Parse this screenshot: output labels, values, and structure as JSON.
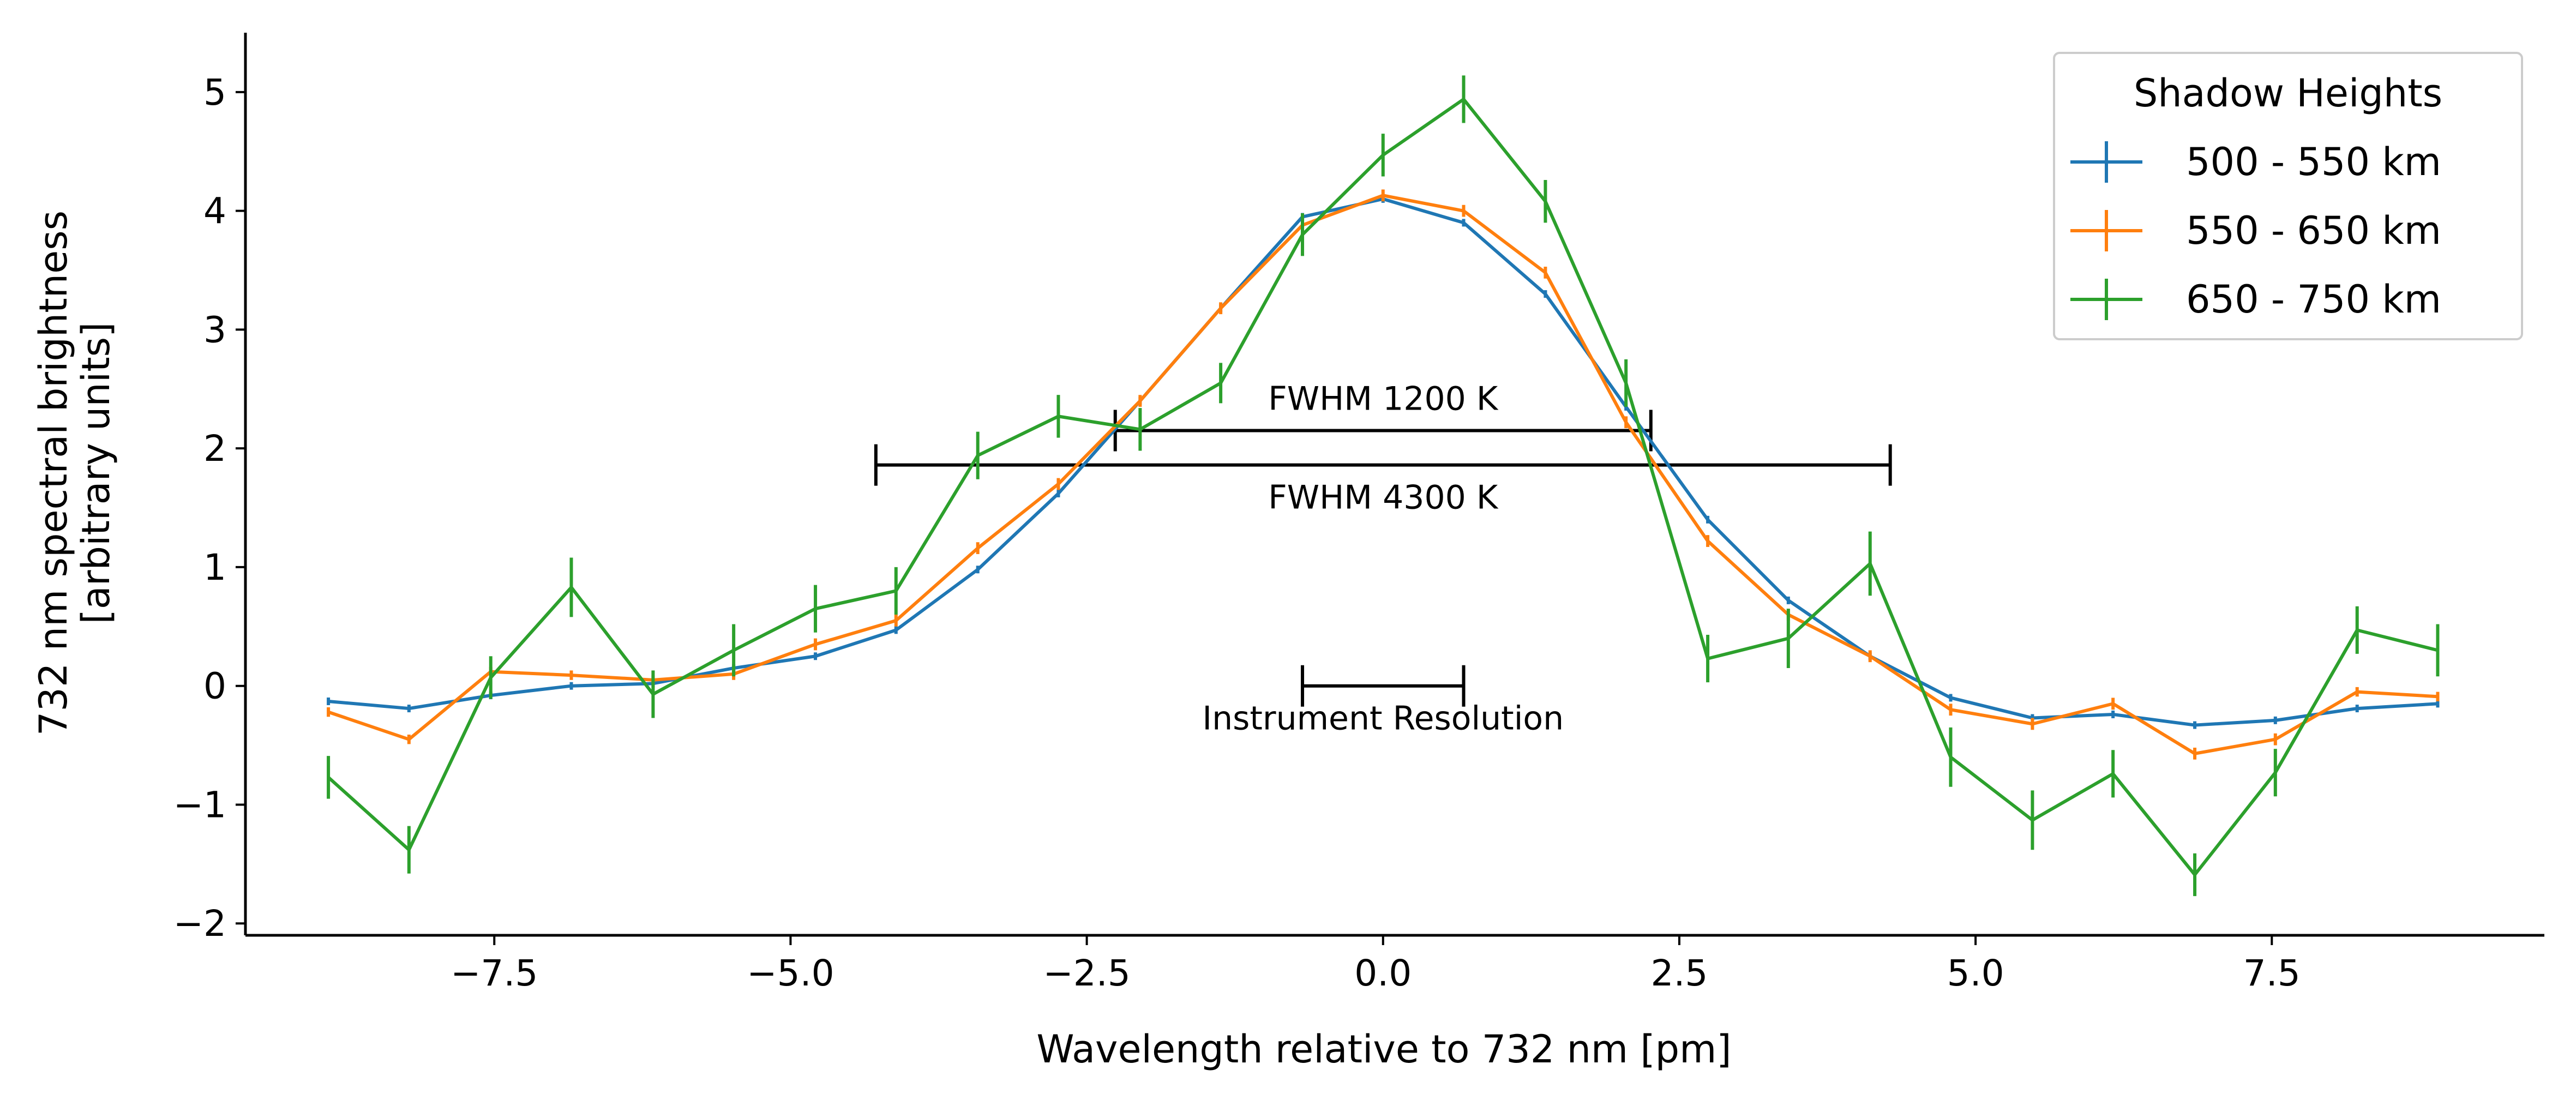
{
  "chart_data": {
    "type": "line",
    "title": "",
    "xlabel": "Wavelength relative to 732 nm [pm]",
    "ylabel": [
      "732 nm spectral brightness",
      "[arbitrary units]"
    ],
    "xlim": [
      -9.6,
      9.8
    ],
    "ylim": [
      -2.1,
      5.5
    ],
    "xticks": [
      -7.5,
      -5.0,
      -2.5,
      0.0,
      2.5,
      5.0,
      7.5
    ],
    "xtick_labels": [
      "−7.5",
      "−5.0",
      "−2.5",
      "0.0",
      "2.5",
      "5.0",
      "7.5"
    ],
    "yticks": [
      -2,
      -1,
      0,
      1,
      2,
      3,
      4,
      5
    ],
    "ytick_labels": [
      "−2",
      "−1",
      "0",
      "1",
      "2",
      "3",
      "4",
      "5"
    ],
    "grid": false,
    "x": [
      -8.9,
      -8.22,
      -7.53,
      -6.85,
      -6.16,
      -5.48,
      -4.79,
      -4.11,
      -3.42,
      -2.74,
      -2.05,
      -1.37,
      -0.68,
      0.0,
      0.68,
      1.37,
      2.05,
      2.74,
      3.42,
      4.11,
      4.79,
      5.48,
      6.16,
      6.85,
      7.53,
      8.22,
      8.9
    ],
    "series": [
      {
        "name": "500 - 550 km",
        "color": "#1f77b4",
        "values": [
          -0.13,
          -0.19,
          -0.08,
          0.0,
          0.02,
          0.15,
          0.25,
          0.47,
          0.98,
          1.62,
          2.4,
          3.18,
          3.95,
          4.1,
          3.9,
          3.3,
          2.35,
          1.4,
          0.72,
          0.25,
          -0.1,
          -0.27,
          -0.24,
          -0.33,
          -0.29,
          -0.19,
          -0.15
        ],
        "errors": [
          0.02,
          0.02,
          0.02,
          0.02,
          0.02,
          0.02,
          0.02,
          0.03,
          0.03,
          0.03,
          0.03,
          0.03,
          0.03,
          0.03,
          0.03,
          0.03,
          0.03,
          0.03,
          0.03,
          0.02,
          0.02,
          0.02,
          0.02,
          0.02,
          0.02,
          0.02,
          0.02
        ]
      },
      {
        "name": "550 - 650 km",
        "color": "#ff7f0e",
        "values": [
          -0.22,
          -0.45,
          0.12,
          0.09,
          0.05,
          0.1,
          0.35,
          0.55,
          1.16,
          1.7,
          2.4,
          3.18,
          3.88,
          4.13,
          4.0,
          3.48,
          2.22,
          1.22,
          0.6,
          0.25,
          -0.2,
          -0.32,
          -0.15,
          -0.57,
          -0.45,
          -0.05,
          -0.09
        ],
        "errors": [
          0.04,
          0.04,
          0.04,
          0.04,
          0.04,
          0.05,
          0.05,
          0.05,
          0.05,
          0.05,
          0.05,
          0.05,
          0.05,
          0.05,
          0.05,
          0.05,
          0.05,
          0.05,
          0.05,
          0.05,
          0.05,
          0.05,
          0.05,
          0.05,
          0.05,
          0.04,
          0.04
        ]
      },
      {
        "name": "650 - 750 km",
        "color": "#2ca02c",
        "values": [
          -0.77,
          -1.38,
          0.07,
          0.83,
          -0.07,
          0.3,
          0.65,
          0.8,
          1.94,
          2.27,
          2.16,
          2.55,
          3.8,
          4.47,
          4.94,
          4.08,
          2.55,
          0.23,
          0.4,
          1.03,
          -0.6,
          -1.13,
          -0.74,
          -1.59,
          -0.73,
          0.47,
          0.3
        ],
        "errors": [
          0.18,
          0.2,
          0.18,
          0.25,
          0.2,
          0.22,
          0.2,
          0.2,
          0.2,
          0.18,
          0.18,
          0.17,
          0.18,
          0.18,
          0.2,
          0.18,
          0.2,
          0.2,
          0.25,
          0.27,
          0.25,
          0.25,
          0.2,
          0.18,
          0.2,
          0.2,
          0.22
        ]
      }
    ],
    "legend": {
      "title": "Shadow Heights",
      "placement": "top-right"
    },
    "annotations": [
      {
        "label": "FWHM 1200 K",
        "x_start": -2.26,
        "x_end": 2.26,
        "y": 2.15,
        "label_position": "above"
      },
      {
        "label": "FWHM 4300 K",
        "x_start": -4.28,
        "x_end": 4.28,
        "y": 1.86,
        "label_position": "below"
      },
      {
        "label": "Instrument Resolution",
        "x_start": -0.68,
        "x_end": 0.68,
        "y": 0.0,
        "label_position": "below"
      }
    ]
  }
}
